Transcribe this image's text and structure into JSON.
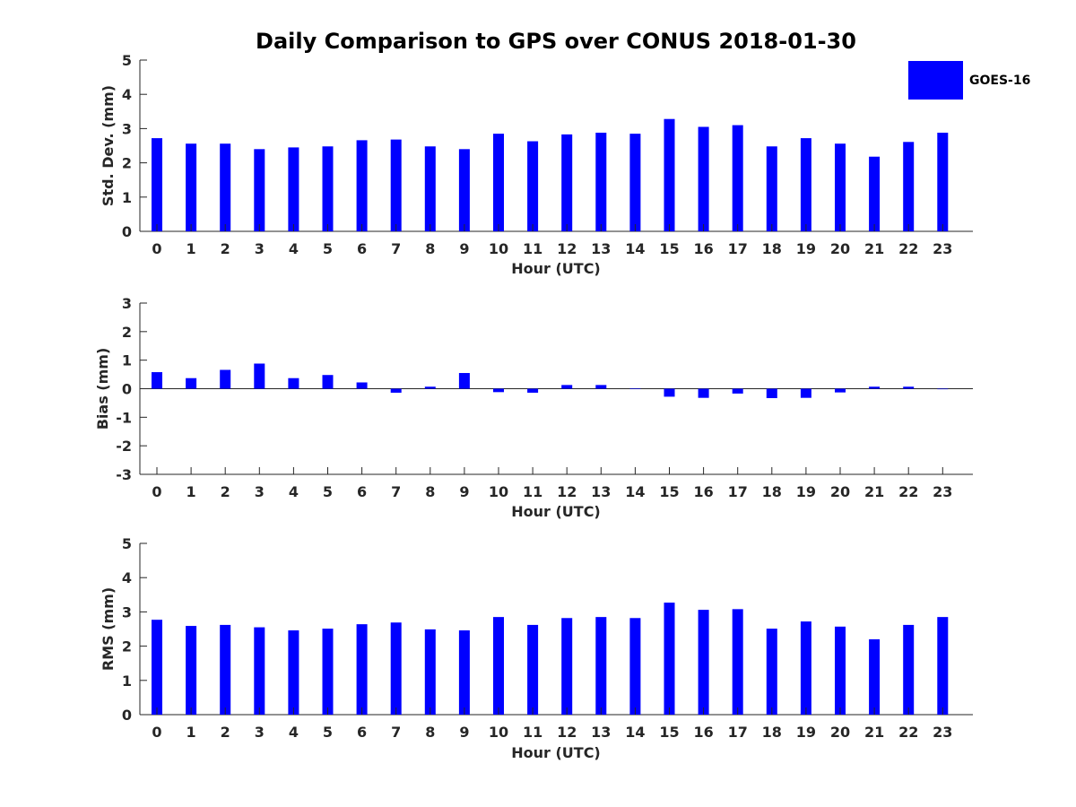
{
  "figure": {
    "title": "Daily Comparison to GPS over CONUS 2018-01-30",
    "legend": {
      "label": "GOES-16",
      "color": "#0000ff",
      "placement": "top-right"
    }
  },
  "chart_data": [
    {
      "type": "bar",
      "xlabel": "Hour (UTC)",
      "ylabel": "Std. Dev. (mm)",
      "ylim": [
        0,
        5
      ],
      "yticks": [
        "0",
        "1",
        "2",
        "3",
        "4",
        "5"
      ],
      "categories": [
        "0",
        "1",
        "2",
        "3",
        "4",
        "5",
        "6",
        "7",
        "8",
        "9",
        "10",
        "11",
        "12",
        "13",
        "14",
        "15",
        "16",
        "17",
        "18",
        "19",
        "20",
        "21",
        "22",
        "23"
      ],
      "series": [
        {
          "name": "GOES-16",
          "color": "#0000ff",
          "values": [
            2.72,
            2.56,
            2.56,
            2.4,
            2.45,
            2.48,
            2.66,
            2.68,
            2.48,
            2.4,
            2.85,
            2.63,
            2.83,
            2.88,
            2.85,
            3.28,
            3.05,
            3.1,
            2.48,
            2.72,
            2.56,
            2.18,
            2.61,
            2.88
          ]
        }
      ],
      "grid": false
    },
    {
      "type": "bar",
      "xlabel": "Hour (UTC)",
      "ylabel": "Bias (mm)",
      "ylim": [
        -3,
        3
      ],
      "yticks": [
        "-3",
        "-2",
        "-1",
        "0",
        "1",
        "2",
        "3"
      ],
      "categories": [
        "0",
        "1",
        "2",
        "3",
        "4",
        "5",
        "6",
        "7",
        "8",
        "9",
        "10",
        "11",
        "12",
        "13",
        "14",
        "15",
        "16",
        "17",
        "18",
        "19",
        "20",
        "21",
        "22",
        "23"
      ],
      "series": [
        {
          "name": "GOES-16",
          "color": "#0000ff",
          "values": [
            0.58,
            0.37,
            0.66,
            0.88,
            0.37,
            0.48,
            0.22,
            -0.14,
            0.07,
            0.55,
            -0.12,
            -0.14,
            0.13,
            0.13,
            0.01,
            -0.28,
            -0.32,
            -0.17,
            -0.33,
            -0.32,
            -0.13,
            0.07,
            0.07,
            -0.01
          ]
        }
      ],
      "grid": false
    },
    {
      "type": "bar",
      "xlabel": "Hour (UTC)",
      "ylabel": "RMS (mm)",
      "ylim": [
        0,
        5
      ],
      "yticks": [
        "0",
        "1",
        "2",
        "3",
        "4",
        "5"
      ],
      "categories": [
        "0",
        "1",
        "2",
        "3",
        "4",
        "5",
        "6",
        "7",
        "8",
        "9",
        "10",
        "11",
        "12",
        "13",
        "14",
        "15",
        "16",
        "17",
        "18",
        "19",
        "20",
        "21",
        "22",
        "23"
      ],
      "series": [
        {
          "name": "GOES-16",
          "color": "#0000ff",
          "values": [
            2.77,
            2.59,
            2.62,
            2.55,
            2.46,
            2.51,
            2.64,
            2.69,
            2.49,
            2.46,
            2.85,
            2.62,
            2.82,
            2.85,
            2.82,
            3.27,
            3.06,
            3.08,
            2.51,
            2.72,
            2.57,
            2.2,
            2.62,
            2.85
          ]
        }
      ],
      "grid": false
    }
  ]
}
